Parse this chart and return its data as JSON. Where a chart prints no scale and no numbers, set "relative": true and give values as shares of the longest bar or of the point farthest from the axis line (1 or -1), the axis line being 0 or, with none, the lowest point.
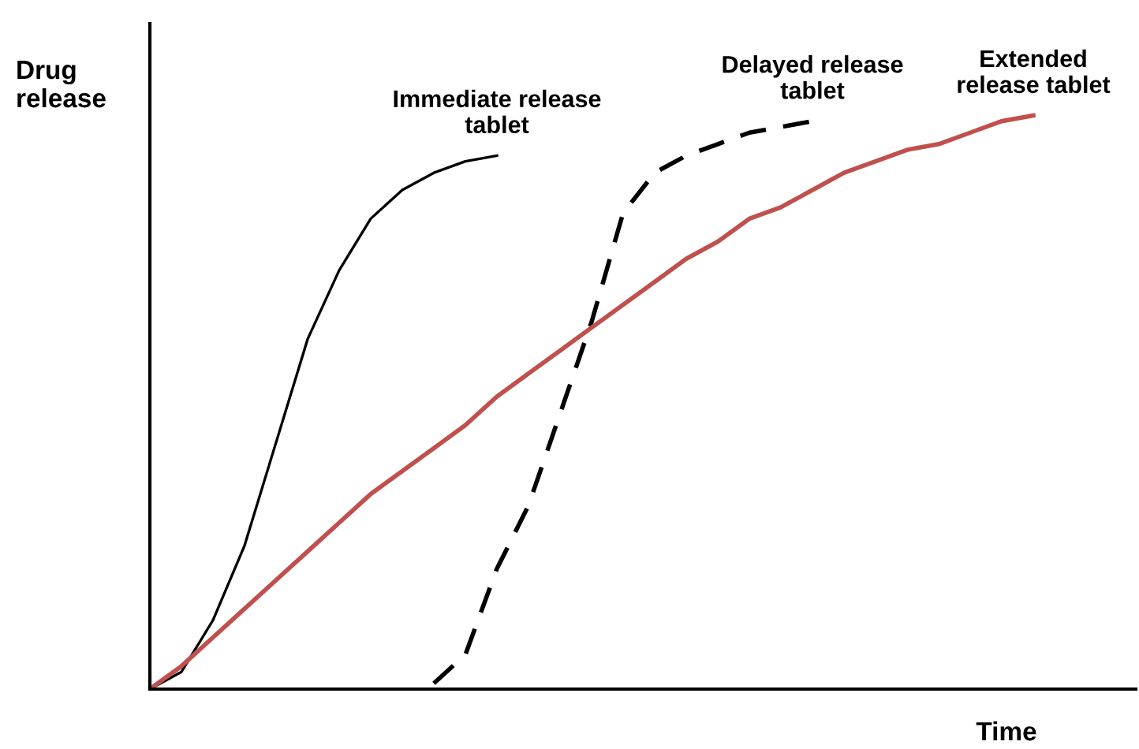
{
  "chart_data": {
    "type": "line",
    "relative": true,
    "xlabel": "Time",
    "ylabel": "Drug\nrelease",
    "legend": false,
    "grid": false,
    "categories": [
      null,
      null,
      null,
      null,
      null,
      null,
      null,
      null,
      null,
      null,
      null,
      null,
      null,
      null,
      null,
      null,
      null,
      null,
      null,
      null,
      null,
      null,
      null,
      null,
      null,
      null,
      null,
      null,
      null,
      null,
      null,
      null
    ],
    "series": [
      {
        "name": "Immediate release\ntablet",
        "color": "#000000",
        "line_style": "solid",
        "values": [
          0,
          0.03,
          0.12,
          0.25,
          0.43,
          0.61,
          0.73,
          0.82,
          0.87,
          0.9,
          0.92,
          0.93,
          null,
          null,
          null,
          null,
          null,
          null,
          null,
          null,
          null,
          null,
          null,
          null,
          null,
          null,
          null,
          null,
          null,
          null,
          null,
          null
        ]
      },
      {
        "name": "Delayed release\ntablet",
        "color": "#000000",
        "line_style": "dashed",
        "values": [
          null,
          null,
          null,
          null,
          null,
          null,
          null,
          null,
          null,
          0.01,
          0.06,
          0.21,
          0.32,
          0.48,
          0.64,
          0.83,
          0.9,
          0.93,
          0.95,
          0.97,
          0.98,
          0.99,
          null,
          null,
          null,
          null,
          null,
          null,
          null,
          null,
          null,
          null
        ]
      },
      {
        "name": "Extended\nrelease tablet",
        "color": "#c0504d",
        "line_style": "solid",
        "values": [
          0,
          0.04,
          0.09,
          0.14,
          0.19,
          0.24,
          0.29,
          0.34,
          0.38,
          0.42,
          0.46,
          0.51,
          0.55,
          0.59,
          0.63,
          0.67,
          0.71,
          0.75,
          0.78,
          0.82,
          0.84,
          0.87,
          0.9,
          0.92,
          0.94,
          0.95,
          0.97,
          0.99,
          1.0,
          null,
          null,
          null
        ]
      }
    ]
  }
}
